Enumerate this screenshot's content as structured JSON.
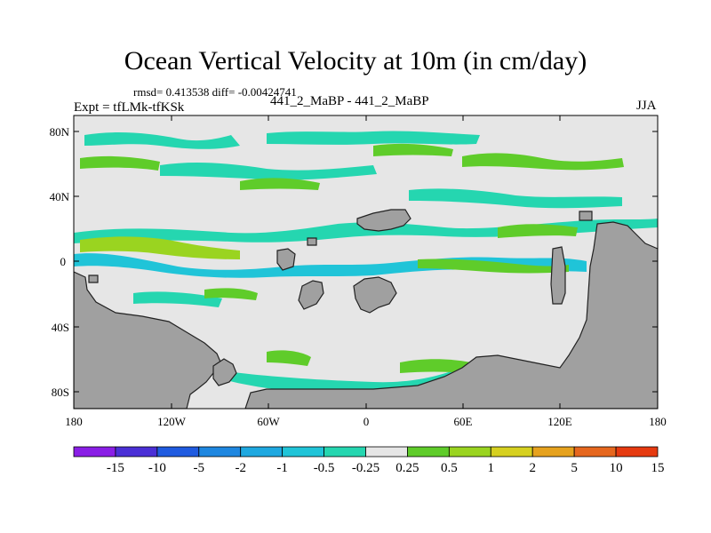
{
  "title": "Ocean Vertical Velocity at 10m (in cm/day)",
  "stats": {
    "rmsd_label": "rmsd=",
    "rmsd_value": "0.413538",
    "diff_label": "diff=",
    "diff_value": "-0.00424741"
  },
  "experiment_label": "Expt = tfLMk-tfKSk",
  "case_label": "441_2_MaBP - 441_2_MaBP",
  "season": "JJA",
  "axes": {
    "lat_ticks": [
      "80N",
      "40N",
      "0",
      "40S",
      "80S"
    ],
    "lon_ticks": [
      "180",
      "120W",
      "60W",
      "0",
      "60E",
      "120E",
      "180"
    ]
  },
  "colorbar": {
    "labels": [
      "-15",
      "-10",
      "-5",
      "-2",
      "-1",
      "-0.5",
      "-0.25",
      "0.25",
      "0.5",
      "1",
      "2",
      "5",
      "10",
      "15"
    ],
    "colors": [
      "#8a1ee6",
      "#4a2fd6",
      "#1f5be0",
      "#1e87e0",
      "#1ea8e0",
      "#20c4d8",
      "#25d6b0",
      "#e6e6e6",
      "#5fcc2a",
      "#9ad420",
      "#d6d020",
      "#e6a21e",
      "#e6671e",
      "#e63a10"
    ]
  },
  "map_colors": {
    "land": "#a0a0a0",
    "near_zero": "#e6e6e6",
    "weak_down": "#25d6b0",
    "down": "#20c4d8",
    "strong_down": "#1ea8e0",
    "weak_up": "#5fcc2a",
    "up": "#9ad420",
    "strong_up": "#d6d020"
  }
}
